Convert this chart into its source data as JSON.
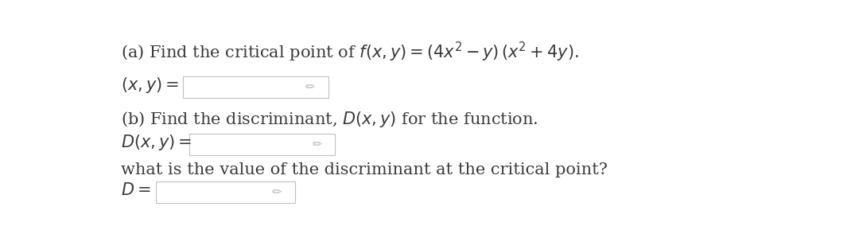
{
  "background_color": "#ffffff",
  "text_color": "#3a3a3a",
  "box_edge_color": "#c0c0c0",
  "box_face_color": "#ffffff",
  "font_size_main": 15,
  "line_a": "(a) Find the critical point of $f(x, y) = (4x^2 - y)\\,(x^2 + 4y).$",
  "line_b_label": "$(x, y) =$",
  "line_c": "(b) Find the discriminant, $D(x, y)$ for the function.",
  "line_d_label": "$D(x, y) =$",
  "line_e": "what is the value of the discriminant at the critical point?",
  "line_f_label": "$D =$"
}
